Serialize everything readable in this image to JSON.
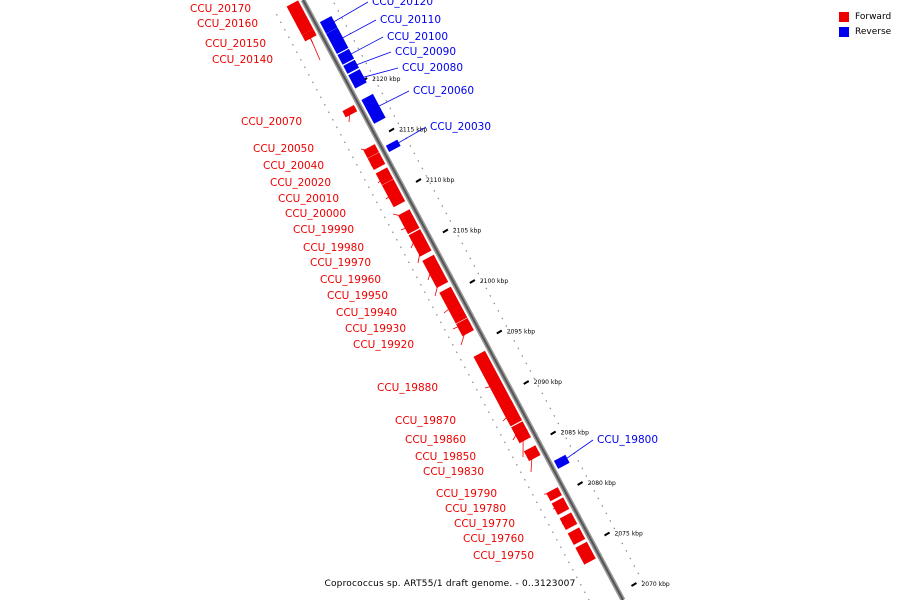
{
  "legend": {
    "forward_label": "Forward",
    "reverse_label": "Reverse",
    "forward_color": "#ee0000",
    "reverse_color": "#0000ee"
  },
  "caption": "Coprococcus sp. ART55/1 draft genome. - 0..3123007",
  "axis": {
    "unit": "kbp",
    "ticks": [
      {
        "kbp": 2120,
        "label": "2120 kbp"
      },
      {
        "kbp": 2115,
        "label": "2115 kbp"
      },
      {
        "kbp": 2110,
        "label": "2110 kbp"
      },
      {
        "kbp": 2105,
        "label": "2105 kbp"
      },
      {
        "kbp": 2100,
        "label": "2100 kbp"
      },
      {
        "kbp": 2095,
        "label": "2095 kbp"
      },
      {
        "kbp": 2090,
        "label": "2090 kbp"
      },
      {
        "kbp": 2085,
        "label": "2085 kbp"
      },
      {
        "kbp": 2080,
        "label": "2080 kbp"
      },
      {
        "kbp": 2075,
        "label": "2075 kbp"
      },
      {
        "kbp": 2070,
        "label": "2070 kbp"
      }
    ]
  },
  "genes": [
    {
      "id": "CCU_20170",
      "strand": "forward"
    },
    {
      "id": "CCU_20160",
      "strand": "forward"
    },
    {
      "id": "CCU_20150",
      "strand": "forward"
    },
    {
      "id": "CCU_20140",
      "strand": "forward"
    },
    {
      "id": "CCU_20120",
      "strand": "reverse"
    },
    {
      "id": "CCU_20110",
      "strand": "reverse"
    },
    {
      "id": "CCU_20100",
      "strand": "reverse"
    },
    {
      "id": "CCU_20090",
      "strand": "reverse"
    },
    {
      "id": "CCU_20080",
      "strand": "reverse"
    },
    {
      "id": "CCU_20060",
      "strand": "reverse"
    },
    {
      "id": "CCU_20070",
      "strand": "forward"
    },
    {
      "id": "CCU_20030",
      "strand": "reverse"
    },
    {
      "id": "CCU_20050",
      "strand": "forward"
    },
    {
      "id": "CCU_20040",
      "strand": "forward"
    },
    {
      "id": "CCU_20020",
      "strand": "forward"
    },
    {
      "id": "CCU_20010",
      "strand": "forward"
    },
    {
      "id": "CCU_20000",
      "strand": "forward"
    },
    {
      "id": "CCU_19990",
      "strand": "forward"
    },
    {
      "id": "CCU_19980",
      "strand": "forward"
    },
    {
      "id": "CCU_19970",
      "strand": "forward"
    },
    {
      "id": "CCU_19960",
      "strand": "forward"
    },
    {
      "id": "CCU_19950",
      "strand": "forward"
    },
    {
      "id": "CCU_19940",
      "strand": "forward"
    },
    {
      "id": "CCU_19930",
      "strand": "forward"
    },
    {
      "id": "CCU_19920",
      "strand": "forward"
    },
    {
      "id": "CCU_19880",
      "strand": "forward"
    },
    {
      "id": "CCU_19870",
      "strand": "forward"
    },
    {
      "id": "CCU_19860",
      "strand": "forward"
    },
    {
      "id": "CCU_19850",
      "strand": "forward"
    },
    {
      "id": "CCU_19830",
      "strand": "forward"
    },
    {
      "id": "CCU_19800",
      "strand": "reverse"
    },
    {
      "id": "CCU_19790",
      "strand": "forward"
    },
    {
      "id": "CCU_19780",
      "strand": "forward"
    },
    {
      "id": "CCU_19770",
      "strand": "forward"
    },
    {
      "id": "CCU_19760",
      "strand": "forward"
    },
    {
      "id": "CCU_19750",
      "strand": "forward"
    }
  ]
}
